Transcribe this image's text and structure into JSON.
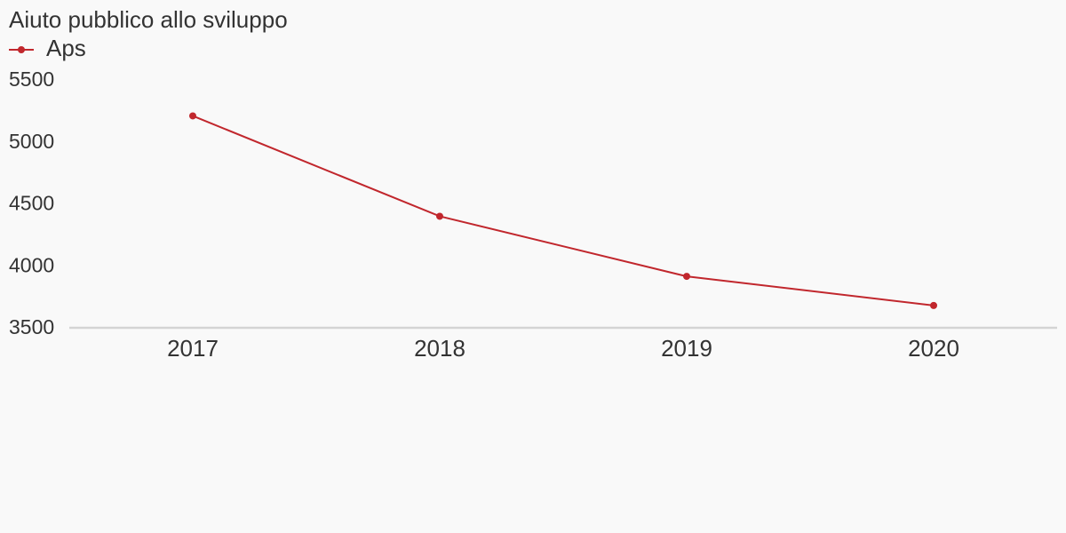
{
  "chart_data": {
    "type": "line",
    "title": "Aiuto pubblico allo sviluppo",
    "categories": [
      "2017",
      "2018",
      "2019",
      "2020"
    ],
    "series": [
      {
        "name": "Aps",
        "color": "#c1272d",
        "values": [
          5210,
          4400,
          3915,
          3680
        ]
      }
    ],
    "ylim": [
      3500,
      5500
    ],
    "yticks": [
      3500,
      4000,
      4500,
      5000,
      5500
    ],
    "grid": false,
    "legend": "top-left"
  }
}
